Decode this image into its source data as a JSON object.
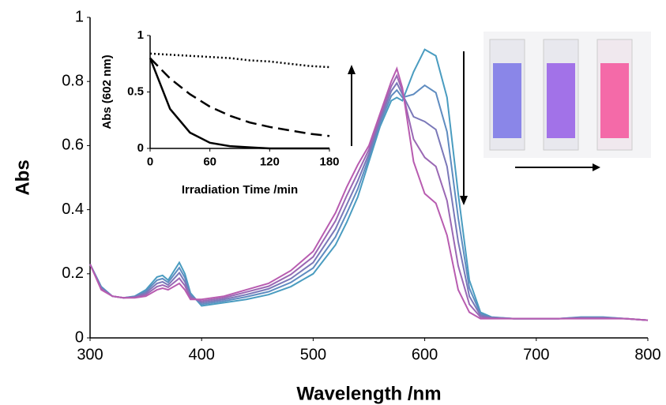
{
  "chart_data": [
    {
      "type": "line",
      "xlabel": "Wavelength /nm",
      "ylabel": "Abs",
      "x": [
        300,
        310,
        320,
        330,
        340,
        350,
        360,
        365,
        370,
        380,
        385,
        390,
        400,
        420,
        440,
        460,
        480,
        500,
        520,
        530,
        540,
        550,
        560,
        570,
        575,
        580,
        590,
        600,
        610,
        620,
        630,
        640,
        650,
        660,
        680,
        700,
        720,
        740,
        760,
        780,
        800
      ],
      "xlim": [
        300,
        800
      ],
      "xticks": [
        300,
        400,
        500,
        600,
        700,
        800
      ],
      "ylim": [
        0,
        1
      ],
      "yticks": [
        0,
        0.2,
        0.4,
        0.6,
        0.8,
        1
      ],
      "series": [
        {
          "color": "#4a9cc0",
          "values": [
            0.23,
            0.16,
            0.13,
            0.125,
            0.13,
            0.15,
            0.19,
            0.195,
            0.18,
            0.235,
            0.2,
            0.14,
            0.1,
            0.11,
            0.12,
            0.135,
            0.16,
            0.2,
            0.29,
            0.36,
            0.44,
            0.55,
            0.66,
            0.74,
            0.75,
            0.74,
            0.83,
            0.9,
            0.88,
            0.75,
            0.45,
            0.18,
            0.08,
            0.065,
            0.06,
            0.06,
            0.06,
            0.065,
            0.065,
            0.06,
            0.055
          ]
        },
        {
          "color": "#5f8cc0",
          "values": [
            0.23,
            0.158,
            0.13,
            0.125,
            0.129,
            0.145,
            0.18,
            0.185,
            0.173,
            0.219,
            0.188,
            0.135,
            0.105,
            0.115,
            0.128,
            0.144,
            0.173,
            0.218,
            0.315,
            0.388,
            0.465,
            0.563,
            0.67,
            0.755,
            0.773,
            0.75,
            0.76,
            0.788,
            0.765,
            0.643,
            0.375,
            0.155,
            0.075,
            0.064,
            0.06,
            0.06,
            0.06,
            0.064,
            0.064,
            0.06,
            0.055
          ]
        },
        {
          "color": "#7a78b8",
          "values": [
            0.23,
            0.155,
            0.13,
            0.125,
            0.128,
            0.14,
            0.17,
            0.175,
            0.165,
            0.203,
            0.175,
            0.13,
            0.11,
            0.12,
            0.135,
            0.153,
            0.185,
            0.235,
            0.34,
            0.415,
            0.49,
            0.575,
            0.68,
            0.77,
            0.795,
            0.76,
            0.69,
            0.675,
            0.65,
            0.535,
            0.3,
            0.13,
            0.07,
            0.063,
            0.06,
            0.06,
            0.06,
            0.063,
            0.063,
            0.06,
            0.055
          ]
        },
        {
          "color": "#9a68b4",
          "values": [
            0.23,
            0.153,
            0.13,
            0.125,
            0.126,
            0.135,
            0.16,
            0.165,
            0.158,
            0.186,
            0.163,
            0.125,
            0.115,
            0.125,
            0.143,
            0.161,
            0.198,
            0.253,
            0.365,
            0.443,
            0.515,
            0.588,
            0.69,
            0.785,
            0.818,
            0.77,
            0.62,
            0.563,
            0.535,
            0.428,
            0.225,
            0.105,
            0.065,
            0.061,
            0.06,
            0.06,
            0.06,
            0.061,
            0.061,
            0.06,
            0.055
          ]
        },
        {
          "color": "#b85cb0",
          "values": [
            0.23,
            0.15,
            0.13,
            0.125,
            0.125,
            0.13,
            0.15,
            0.155,
            0.15,
            0.17,
            0.15,
            0.12,
            0.12,
            0.13,
            0.15,
            0.17,
            0.21,
            0.27,
            0.39,
            0.47,
            0.54,
            0.6,
            0.7,
            0.8,
            0.84,
            0.78,
            0.55,
            0.45,
            0.42,
            0.32,
            0.15,
            0.08,
            0.06,
            0.06,
            0.06,
            0.06,
            0.06,
            0.06,
            0.06,
            0.06,
            0.055
          ]
        }
      ]
    },
    {
      "type": "line",
      "xlabel": "Irradiation Time /min",
      "ylabel": "Abs (602 nm)",
      "x": [
        0,
        20,
        40,
        60,
        80,
        100,
        120,
        140,
        160,
        180
      ],
      "xlim": [
        0,
        180
      ],
      "xticks": [
        0,
        60,
        120,
        180
      ],
      "ylim": [
        0,
        1
      ],
      "yticks": [
        0,
        0.5,
        1
      ],
      "series": [
        {
          "color": "#000000",
          "dash": "2,3",
          "values": [
            0.84,
            0.83,
            0.82,
            0.81,
            0.8,
            0.78,
            0.77,
            0.75,
            0.73,
            0.72
          ]
        },
        {
          "color": "#000000",
          "dash": "14,7",
          "values": [
            0.8,
            0.62,
            0.48,
            0.37,
            0.29,
            0.23,
            0.19,
            0.16,
            0.13,
            0.11
          ]
        },
        {
          "color": "#000000",
          "values": [
            0.8,
            0.35,
            0.14,
            0.05,
            0.02,
            0.01,
            0,
            0,
            0,
            0
          ]
        }
      ]
    }
  ]
}
